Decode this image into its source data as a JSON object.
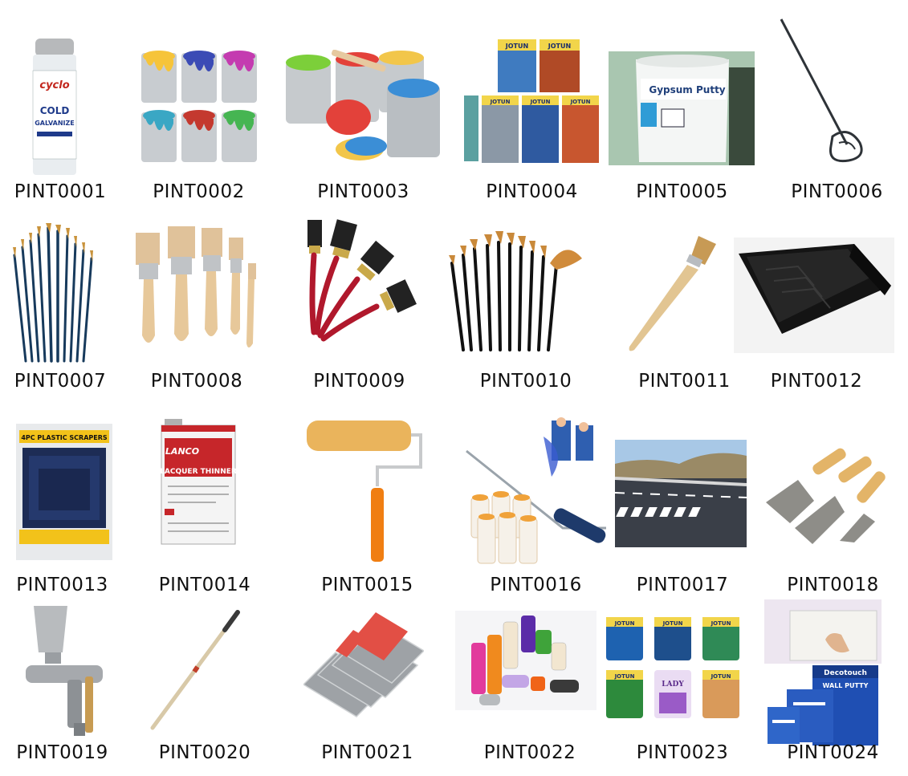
{
  "catalog": {
    "items": [
      {
        "code": "PINT0001",
        "icon": "spray-can-icon",
        "pic_text": [
          "cyclo",
          "COLD",
          "GALVANIZE"
        ]
      },
      {
        "code": "PINT0002",
        "icon": "paint-cans-icon"
      },
      {
        "code": "PINT0003",
        "icon": "open-paint-tins-icon"
      },
      {
        "code": "PINT0004",
        "icon": "paint-buckets-icon",
        "pic_text": [
          "JOTUN",
          "JOTUN",
          "JOTUN",
          "JOTUN",
          "JOTUN"
        ]
      },
      {
        "code": "PINT0005",
        "icon": "gypsum-putty-bucket-icon",
        "pic_text": [
          "Gypsum Putty"
        ]
      },
      {
        "code": "PINT0006",
        "icon": "paint-mixer-icon"
      },
      {
        "code": "PINT0007",
        "icon": "artist-brushes-icon"
      },
      {
        "code": "PINT0008",
        "icon": "wooden-paint-brushes-icon"
      },
      {
        "code": "PINT0009",
        "icon": "red-handle-brushes-icon"
      },
      {
        "code": "PINT0010",
        "icon": "fine-art-brushes-icon"
      },
      {
        "code": "PINT0011",
        "icon": "angled-brush-icon"
      },
      {
        "code": "PINT0012",
        "icon": "paint-tray-icon"
      },
      {
        "code": "PINT0013",
        "icon": "plastic-scrapers-icon",
        "pic_text": [
          "4PC PLASTIC SCRAPERS"
        ]
      },
      {
        "code": "PINT0014",
        "icon": "lacquer-thinner-can-icon",
        "pic_text": [
          "LANCO",
          "LACQUER THINNER"
        ]
      },
      {
        "code": "PINT0015",
        "icon": "paint-roller-icon"
      },
      {
        "code": "PINT0016",
        "icon": "roller-refills-icon"
      },
      {
        "code": "PINT0017",
        "icon": "road-marking-icon"
      },
      {
        "code": "PINT0018",
        "icon": "putty-knives-icon"
      },
      {
        "code": "PINT0019",
        "icon": "spray-gun-icon"
      },
      {
        "code": "PINT0020",
        "icon": "extension-pole-icon"
      },
      {
        "code": "PINT0021",
        "icon": "steel-scrapers-icon"
      },
      {
        "code": "PINT0022",
        "icon": "spray-paint-cans-icon"
      },
      {
        "code": "PINT0023",
        "icon": "jotun-paint-cans-icon",
        "pic_text": [
          "JOTUN",
          "JOTUN",
          "JOTUN",
          "JOTUN",
          "LADY",
          "JOTUN"
        ]
      },
      {
        "code": "PINT0024",
        "icon": "wall-putty-bags-icon",
        "pic_text": [
          "Decotouch",
          "WALL PUTTY"
        ]
      }
    ]
  }
}
